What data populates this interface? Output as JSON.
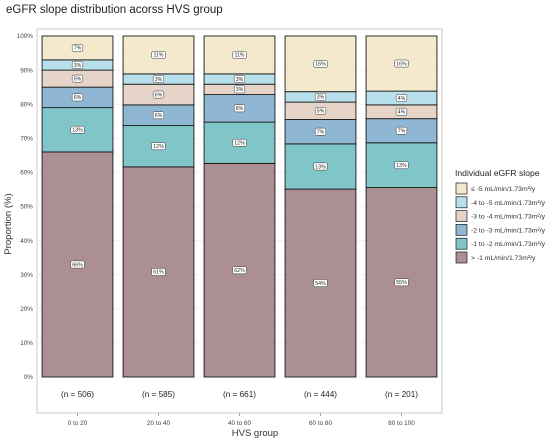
{
  "chart_data": {
    "type": "bar",
    "stacked": true,
    "title": "eGFR slope distribution acorss HVS group",
    "xlabel": "HVS group",
    "ylabel": "Proportion (%)",
    "ylim": [
      0,
      100
    ],
    "y_ticks": [
      "0%",
      "10%",
      "20%",
      "30%",
      "40%",
      "50%",
      "60%",
      "70%",
      "80%",
      "90%",
      "100%"
    ],
    "grid": true,
    "categories": [
      "0 to 20",
      "20 to 40",
      "40 to 60",
      "60 to 80",
      "80 to 100"
    ],
    "sample_sizes": [
      "(n = 506)",
      "(n = 585)",
      "(n = 661)",
      "(n = 444)",
      "(n = 201)"
    ],
    "legend": {
      "title": "Individual eGFR slope",
      "position": "right"
    },
    "series": [
      {
        "name": "> -1 mL/min/1.73m²/y",
        "color": "#ab8f92",
        "values": [
          66,
          61,
          62,
          54,
          55
        ],
        "labels": [
          "66%",
          "61%",
          "62%",
          "54%",
          "55%"
        ]
      },
      {
        "name": "-1 to -2 mL/min/1.73m²/y",
        "color": "#80c5c8",
        "values": [
          13,
          12,
          12,
          13,
          13
        ],
        "labels": [
          "13%",
          "12%",
          "12%",
          "13%",
          "13%"
        ]
      },
      {
        "name": "-2 to -3 mL/min/1.73m²/y",
        "color": "#8fb6d2",
        "values": [
          6,
          6,
          8,
          7,
          7
        ],
        "labels": [
          "6%",
          "6%",
          "8%",
          "7%",
          "7%"
        ]
      },
      {
        "name": "-3 to -4 mL/min/1.73m²/y",
        "color": "#e5d4c7",
        "values": [
          5,
          6,
          3,
          5,
          4
        ],
        "labels": [
          "5%",
          "6%",
          "3%",
          "5%",
          "4%"
        ]
      },
      {
        "name": "-4 to -5 mL/min/1.73m²/y",
        "color": "#b8e0ec",
        "values": [
          3,
          3,
          3,
          3,
          4
        ],
        "labels": [
          "3%",
          "3%",
          "3%",
          "3%",
          "4%"
        ]
      },
      {
        "name": "≤ -5 mL/min/1.73m²/y",
        "color": "#f5e9cd",
        "values": [
          7,
          11,
          11,
          16,
          16
        ],
        "labels": [
          "7%",
          "11%",
          "11%",
          "16%",
          "16%"
        ]
      }
    ]
  }
}
